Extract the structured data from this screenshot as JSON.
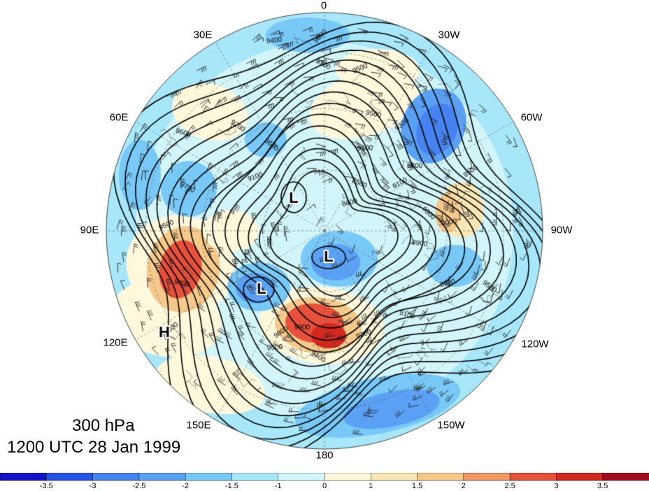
{
  "longitude_labels": {
    "lon_0": "0",
    "lon_30w": "30W",
    "lon_60w": "60W",
    "lon_90w": "90W",
    "lon_120w": "120W",
    "lon_150w": "150W",
    "lon_180": "180",
    "lon_150e": "150E",
    "lon_120e": "120E",
    "lon_90e": "90E",
    "lon_60e": "60E",
    "lon_30e": "30E"
  },
  "caption": {
    "level": "300 hPa",
    "time": "1200 UTC 28 Jan 1999"
  },
  "pressure_centers": [
    "L",
    "L",
    "L",
    "H"
  ],
  "contour_labels": [
    "9600",
    "9400",
    "9300",
    "9500",
    "9500",
    "9300",
    "9100",
    "9200",
    "9100",
    "9600",
    "9500",
    "8800",
    "8600",
    "8400",
    "8500",
    "9100",
    "8900",
    "9300",
    "9000",
    "9700",
    "9500",
    "9400",
    "9600",
    "9500",
    "9400",
    "9200",
    "9100",
    "9800",
    "9900",
    "9500",
    "8900"
  ],
  "colorbar": {
    "tick_labels": [
      "-3.5",
      "-3",
      "-2.5",
      "-2",
      "-1.5",
      "-1",
      "0",
      "1",
      "1.5",
      "2",
      "2.5",
      "3",
      "3.5"
    ],
    "colors": [
      "#1414c8",
      "#2850e6",
      "#4682f0",
      "#5aa0f5",
      "#78c8f8",
      "#a8e6fa",
      "#d2f5fa",
      "#fff8dc",
      "#fae6b4",
      "#f5c88c",
      "#f09664",
      "#e6503c",
      "#d2281e",
      "#a00a1e"
    ]
  }
}
